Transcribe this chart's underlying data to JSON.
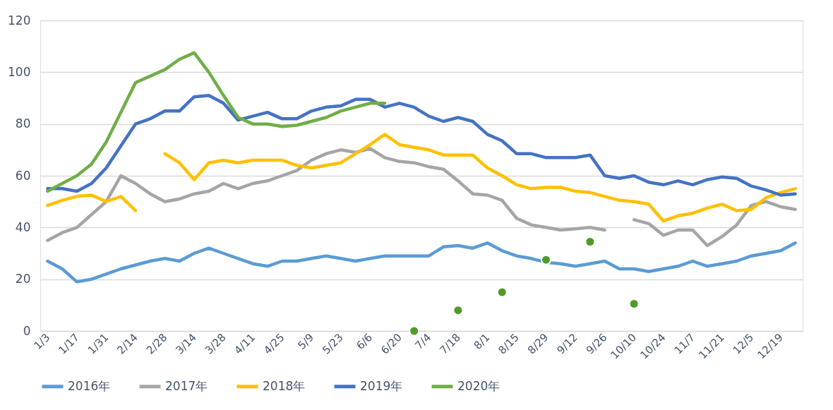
{
  "chart_data": {
    "type": "line",
    "categories": [
      "1/3",
      null,
      "1/17",
      null,
      "1/31",
      null,
      "2/14",
      null,
      "2/28",
      null,
      "3/14",
      null,
      "3/28",
      null,
      "4/11",
      null,
      "4/25",
      null,
      "5/9",
      null,
      "5/23",
      null,
      "6/6",
      null,
      "6/20",
      null,
      "7/4",
      null,
      "7/18",
      null,
      "8/1",
      null,
      "8/15",
      null,
      "8/29",
      null,
      "9/12",
      null,
      "9/26",
      null,
      "10/10",
      null,
      "10/24",
      null,
      "11/7",
      null,
      "11/21",
      null,
      "12/5",
      null,
      "12/19",
      null
    ],
    "ylim": [
      0,
      120
    ],
    "yticks": [
      0,
      20,
      40,
      60,
      80,
      100,
      120
    ],
    "grid": "y",
    "legend": "bottom",
    "line_style": "solid",
    "series": [
      {
        "name": "2016年",
        "color": "#5b9bd5",
        "values": [
          27,
          24,
          19,
          20,
          22,
          24,
          25.5,
          27,
          28,
          27,
          30,
          32,
          30,
          28,
          26,
          25,
          27,
          27,
          28,
          29,
          28,
          27,
          28,
          29,
          29,
          29,
          29,
          32.5,
          33,
          32,
          34,
          31,
          29,
          28,
          26.5,
          26,
          25,
          26,
          27,
          24,
          24,
          23,
          24,
          25,
          27,
          25,
          26,
          27,
          29,
          30,
          31,
          34
        ]
      },
      {
        "name": "2017年",
        "color": "#a5a5a5",
        "values": [
          35,
          38,
          40,
          45,
          50,
          60,
          57,
          53,
          50,
          51,
          53,
          54,
          57,
          55,
          57,
          58,
          60,
          62,
          66,
          68.5,
          70,
          69,
          70.5,
          67,
          65.5,
          65,
          63.5,
          62.5,
          58,
          53,
          52.5,
          50.5,
          43.5,
          41,
          40,
          39,
          39.5,
          40,
          39,
          null,
          43,
          41.5,
          37,
          39,
          39,
          33,
          36.5,
          41,
          48.5,
          50,
          48,
          47
        ]
      },
      {
        "name": "2018年",
        "color": "#ffc000",
        "values": [
          48.5,
          50.5,
          52,
          52.5,
          50,
          52,
          46.5,
          null,
          68.5,
          65,
          58.5,
          65,
          66,
          65,
          66,
          66,
          66,
          64,
          63,
          64,
          65,
          68.5,
          72,
          76,
          72,
          71,
          70,
          68,
          68,
          68,
          63,
          60,
          56.5,
          55,
          55.5,
          55.5,
          54,
          53.5,
          52,
          50.5,
          50,
          49,
          42.5,
          44.5,
          45.5,
          47.5,
          49,
          46.5,
          47,
          51.5,
          53.5,
          55
        ]
      },
      {
        "name": "2019年",
        "color": "#4472c4",
        "values": [
          55,
          55,
          54,
          57,
          63,
          71.5,
          80,
          82,
          85,
          85,
          90.5,
          91,
          88,
          81.5,
          83,
          84.5,
          82,
          82,
          85,
          86.5,
          87,
          89.5,
          89.5,
          86.5,
          88,
          86.5,
          83,
          81,
          82.5,
          81,
          76,
          73.5,
          68.5,
          68.5,
          67,
          67,
          67,
          68,
          60,
          59,
          60,
          57.5,
          56.5,
          58,
          56.5,
          58.5,
          59.5,
          59,
          56,
          54.5,
          52.5,
          53
        ]
      },
      {
        "name": "2020年",
        "color": "#70ad47",
        "values": [
          54,
          57,
          60,
          64.5,
          73,
          84.5,
          96,
          98.5,
          101,
          105,
          107.5,
          100,
          91,
          82.5,
          80,
          80,
          79,
          79.5,
          81,
          82.5,
          85,
          86.5,
          88,
          88,
          null,
          null,
          null,
          null,
          null,
          null,
          null,
          null,
          null,
          null,
          null,
          null,
          null,
          null,
          null,
          null,
          null,
          null,
          null,
          null,
          null,
          null,
          null,
          null,
          null,
          null,
          null,
          null
        ]
      },
      {
        "type": "scatter",
        "marker": "circle",
        "color": "#4f9a2a",
        "values": [
          null,
          null,
          null,
          null,
          null,
          null,
          null,
          null,
          null,
          null,
          null,
          null,
          null,
          null,
          null,
          null,
          null,
          null,
          null,
          null,
          null,
          null,
          null,
          null,
          null,
          0,
          null,
          null,
          8,
          null,
          null,
          15,
          null,
          null,
          27.5,
          null,
          null,
          34.5,
          null,
          null,
          10.5,
          null,
          null,
          null,
          null,
          null,
          null,
          null,
          null,
          null,
          null,
          null
        ]
      }
    ]
  }
}
